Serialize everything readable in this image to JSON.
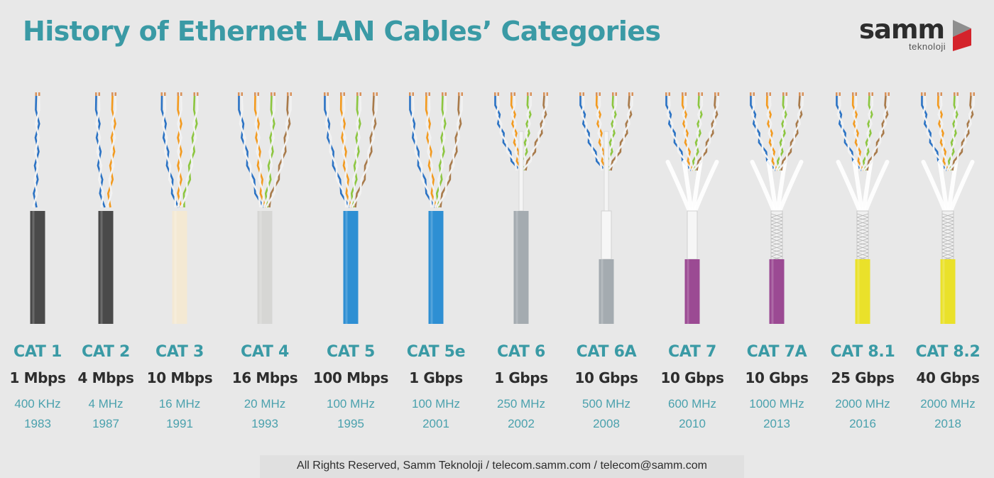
{
  "header": {
    "title": "History of Ethernet LAN Cables’ Categories",
    "logo_word": "samm",
    "logo_sub": "teknoloji"
  },
  "colors": {
    "title": "#3a9aa5",
    "speed_text": "#2d2d2d",
    "freq_text": "#4aa1ad",
    "wire_blue": "#2a72c4",
    "wire_orange": "#f39a1e",
    "wire_green": "#8cc63f",
    "wire_brown": "#a87a4a",
    "logo_red": "#d4232b"
  },
  "cables": [
    {
      "name": "CAT 1",
      "speed": "1 Mbps",
      "frequency": "400 KHz",
      "year": "1983",
      "pairs": 1,
      "jacket": "#4a4a4a",
      "shield": "none"
    },
    {
      "name": "CAT 2",
      "speed": "4 Mbps",
      "frequency": "4 MHz",
      "year": "1987",
      "pairs": 2,
      "jacket": "#4a4a4a",
      "shield": "none"
    },
    {
      "name": "CAT 3",
      "speed": "10 Mbps",
      "frequency": "16 MHz",
      "year": "1991",
      "pairs": 3,
      "jacket": "#f4e9d3",
      "shield": "none"
    },
    {
      "name": "CAT 4",
      "speed": "16 Mbps",
      "frequency": "20 MHz",
      "year": "1993",
      "pairs": 4,
      "jacket": "#d6d6d4",
      "shield": "none"
    },
    {
      "name": "CAT 5",
      "speed": "100 Mbps",
      "frequency": "100 MHz",
      "year": "1995",
      "pairs": 4,
      "jacket": "#2e8fd3",
      "shield": "none"
    },
    {
      "name": "CAT 5e",
      "speed": "1 Gbps",
      "frequency": "100 MHz",
      "year": "2001",
      "pairs": 4,
      "jacket": "#2e8fd3",
      "shield": "none"
    },
    {
      "name": "CAT 6",
      "speed": "1 Gbps",
      "frequency": "250 MHz",
      "year": "2002",
      "pairs": 4,
      "jacket": "#a4abb0",
      "shield": "spline"
    },
    {
      "name": "CAT 6A",
      "speed": "10 Gbps",
      "frequency": "500 MHz",
      "year": "2008",
      "pairs": 4,
      "jacket": "#a4abb0",
      "shield": "foil"
    },
    {
      "name": "CAT 7",
      "speed": "10 Gbps",
      "frequency": "600 MHz",
      "year": "2010",
      "pairs": 4,
      "jacket": "#9b4a93",
      "shield": "foil-pairs"
    },
    {
      "name": "CAT 7A",
      "speed": "10 Gbps",
      "frequency": "1000 MHz",
      "year": "2013",
      "pairs": 4,
      "jacket": "#9b4a93",
      "shield": "braid"
    },
    {
      "name": "CAT 8.1",
      "speed": "25 Gbps",
      "frequency": "2000 MHz",
      "year": "2016",
      "pairs": 4,
      "jacket": "#eae12a",
      "shield": "braid"
    },
    {
      "name": "CAT 8.2",
      "speed": "40 Gbps",
      "frequency": "2000 MHz",
      "year": "2018",
      "pairs": 4,
      "jacket": "#eae12a",
      "shield": "braid"
    }
  ],
  "footer": {
    "text": "All Rights Reserved, Samm Teknoloji / telecom.samm.com / telecom@samm.com"
  }
}
